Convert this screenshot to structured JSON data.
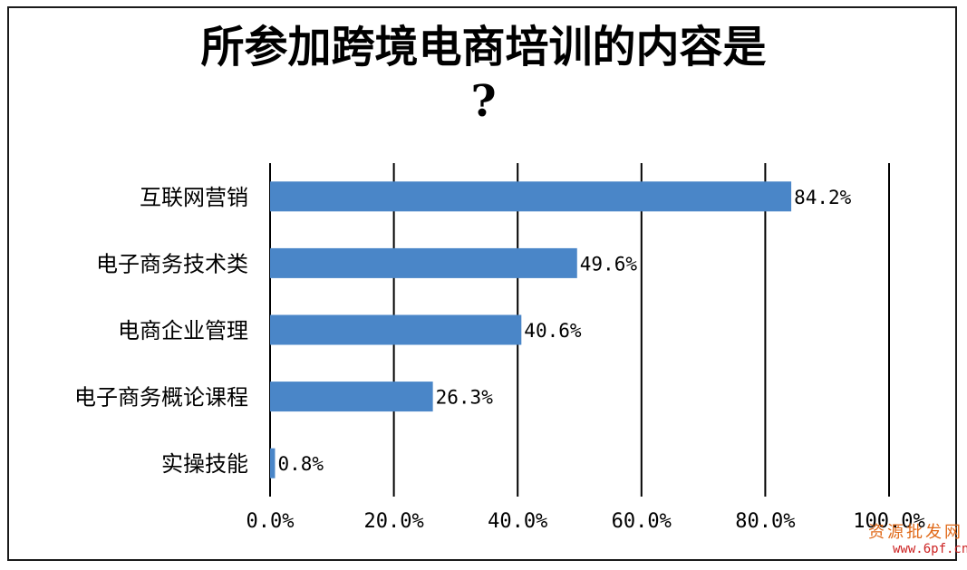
{
  "chart_data": {
    "type": "bar",
    "orientation": "horizontal",
    "title_line1": "所参加跨境电商培训的内容是",
    "title_line2": "?",
    "categories": [
      "互联网营销",
      "电子商务技术类",
      "电商企业管理",
      "电子商务概论课程",
      "实操技能"
    ],
    "values": [
      84.2,
      49.6,
      40.6,
      26.3,
      0.8
    ],
    "data_labels": [
      "84.2%",
      "49.6%",
      "40.6%",
      "26.3%",
      "0.8%"
    ],
    "xlim": [
      0,
      100
    ],
    "ticks": [
      0,
      20,
      40,
      60,
      80,
      100
    ],
    "tick_labels": [
      "0.0%",
      "20.0%",
      "40.0%",
      "60.0%",
      "80.0%",
      "100.0%"
    ],
    "grid": true,
    "bar_color": "#4a86c8"
  },
  "watermark": {
    "line1": "资源批发网",
    "line2": "www.6pf.cn"
  }
}
